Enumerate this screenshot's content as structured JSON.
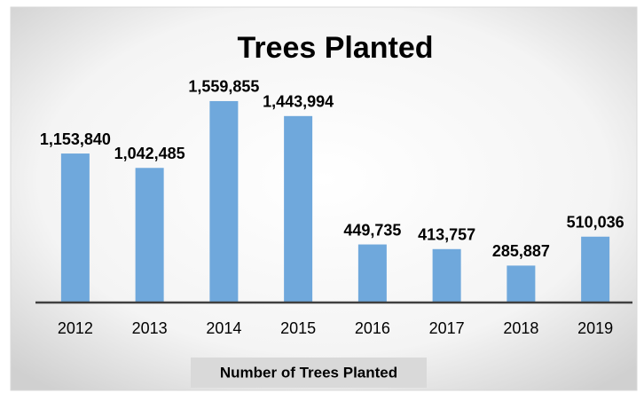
{
  "chart_data": {
    "type": "bar",
    "title": "Trees Planted",
    "categories": [
      "2012",
      "2013",
      "2014",
      "2015",
      "2016",
      "2017",
      "2018",
      "2019"
    ],
    "values": [
      1153840,
      1042485,
      1559855,
      1443994,
      449735,
      413757,
      285887,
      510036
    ],
    "value_labels": [
      "1,153,840",
      "1,042,485",
      "1,559,855",
      "1,443,994",
      "449,735",
      "413,757",
      "285,887",
      "510,036"
    ],
    "color": "#6fa8dc",
    "x_label": "Number of Trees Planted",
    "ylim": [
      0,
      1800000
    ]
  }
}
